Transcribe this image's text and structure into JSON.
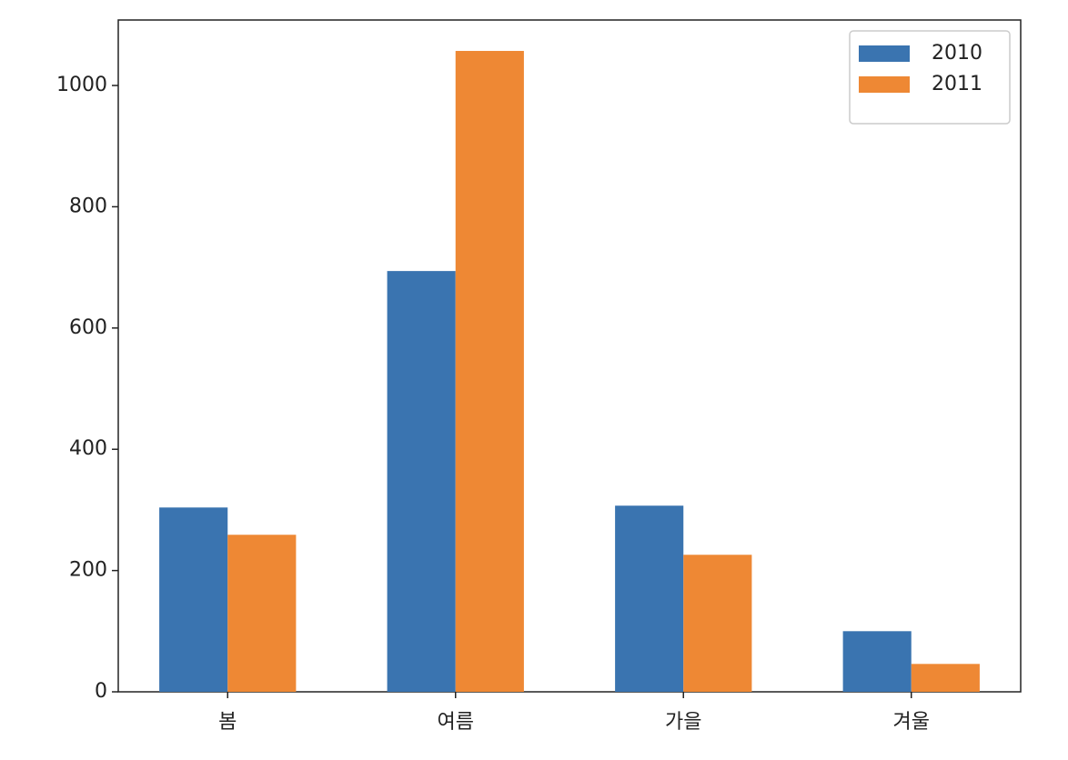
{
  "chart_data": {
    "type": "bar",
    "categories": [
      "봄",
      "여름",
      "가을",
      "겨울"
    ],
    "series": [
      {
        "name": "2010",
        "color": "#3a74b0",
        "values": [
          304,
          694,
          307,
          100
        ]
      },
      {
        "name": "2011",
        "color": "#ee8834",
        "values": [
          259,
          1057,
          226,
          46
        ]
      }
    ],
    "ylim": [
      0,
      1108
    ],
    "yticks": [
      0,
      200,
      400,
      600,
      800,
      1000
    ],
    "legend": "upper right"
  }
}
